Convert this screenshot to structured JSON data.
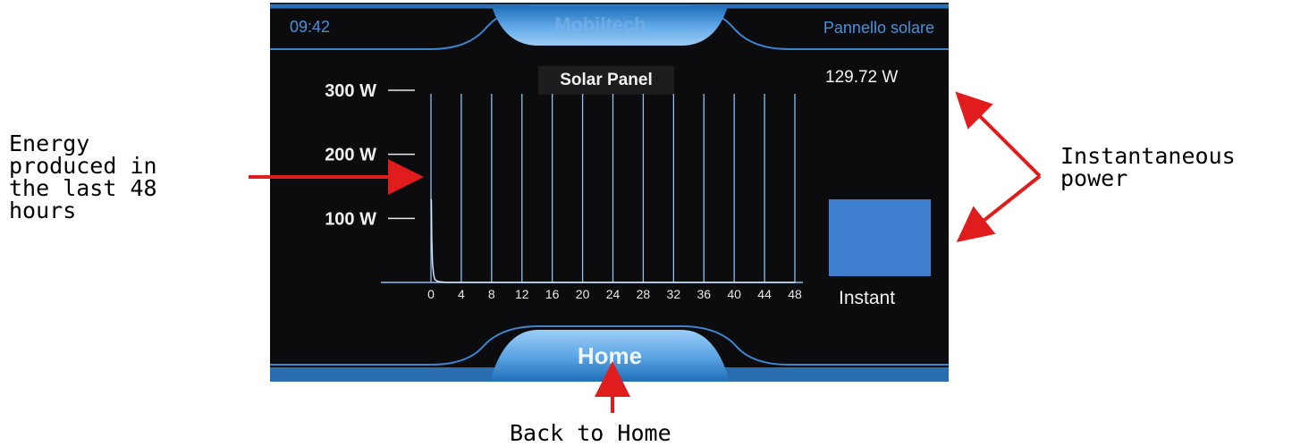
{
  "annotations": {
    "energy": "Energy\nproduced in\nthe last 48\nhours",
    "instant_power": "Instantaneous\npower",
    "back_home": "Back to Home"
  },
  "status_bar": {
    "time": "09:42",
    "brand": "Mobiltech",
    "page_title": "Pannello solare"
  },
  "panel": {
    "instant_value": "129.72 W",
    "instant_label": "Instant",
    "instant_level": 0.43,
    "home_label": "Home"
  },
  "colors": {
    "accent": "#4a90d8",
    "screen_bg": "#0c0c0e",
    "bar": "#3f7fd0",
    "grid": "#8fc0ee",
    "annotation_arrow": "#e11c1c"
  },
  "chart_data": {
    "type": "line",
    "title": "Solar Panel",
    "xlabel": "",
    "ylabel": "",
    "x_ticks": [
      0,
      4,
      8,
      12,
      16,
      20,
      24,
      28,
      32,
      36,
      40,
      44,
      48
    ],
    "y_ticks": [
      100,
      200,
      300
    ],
    "y_tick_labels": [
      "100 W",
      "200 W",
      "300 W"
    ],
    "xlim": [
      0,
      48
    ],
    "ylim": [
      0,
      300
    ],
    "grid": true,
    "series": [
      {
        "x": [
          0,
          0.05,
          0.1,
          0.2,
          0.35,
          0.5,
          0.8,
          1.2,
          2,
          4,
          8,
          12,
          16,
          20,
          24,
          28,
          32,
          36,
          40,
          44,
          48
        ],
        "values": [
          130,
          128,
          70,
          30,
          12,
          5,
          2,
          1,
          0,
          0,
          0,
          0,
          0,
          0,
          0,
          0,
          0,
          0,
          0,
          0,
          0
        ]
      }
    ]
  }
}
